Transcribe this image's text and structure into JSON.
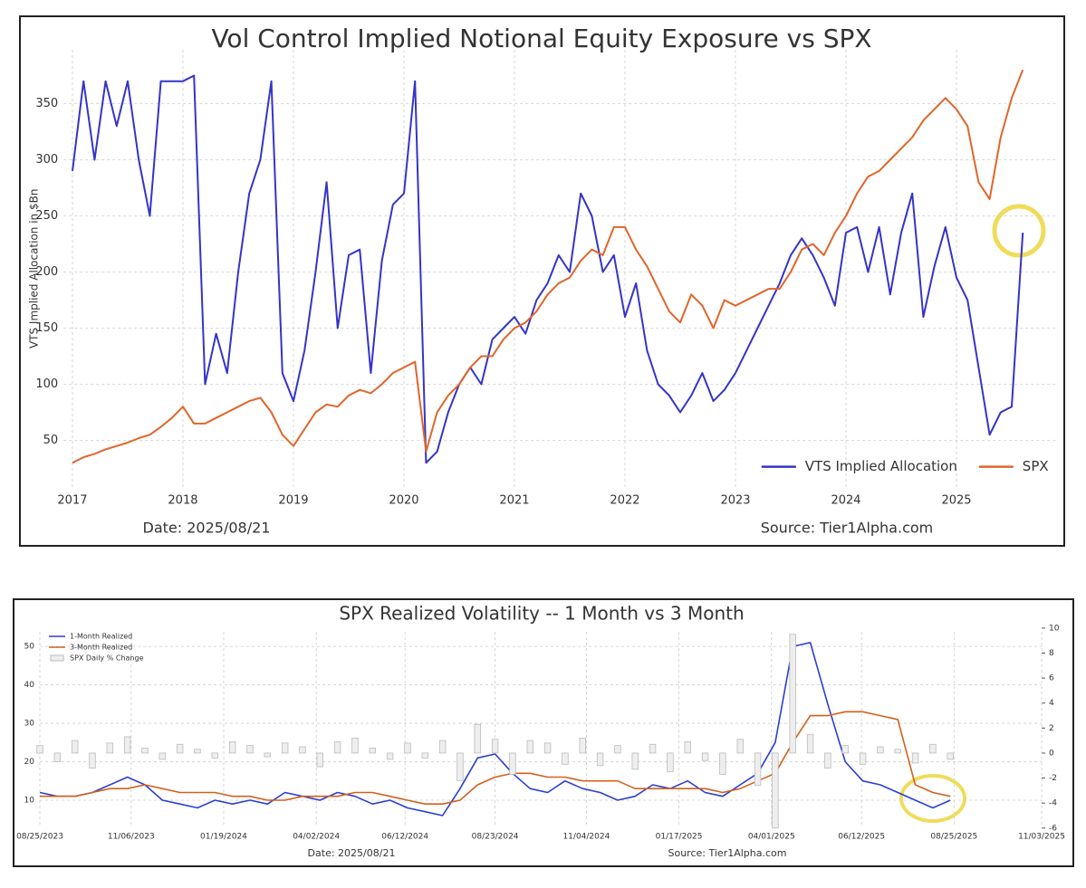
{
  "chart_data": [
    {
      "type": "line",
      "title": "Vol Control Implied Notional Equity Exposure vs SPX",
      "ylabel": "VTS Implied Allocation in $Bn",
      "annotations": [
        "Date: 2025/08/21",
        "Source: Tier1Alpha.com"
      ],
      "x": [
        2017.0,
        2017.1,
        2017.2,
        2017.3,
        2017.4,
        2017.5,
        2017.6,
        2017.7,
        2017.8,
        2017.9,
        2018.0,
        2018.1,
        2018.2,
        2018.3,
        2018.4,
        2018.5,
        2018.6,
        2018.7,
        2018.8,
        2018.9,
        2019.0,
        2019.1,
        2019.2,
        2019.3,
        2019.4,
        2019.5,
        2019.6,
        2019.7,
        2019.8,
        2019.9,
        2020.0,
        2020.1,
        2020.2,
        2020.3,
        2020.4,
        2020.5,
        2020.6,
        2020.7,
        2020.8,
        2020.9,
        2021.0,
        2021.1,
        2021.2,
        2021.3,
        2021.4,
        2021.5,
        2021.6,
        2021.7,
        2021.8,
        2021.9,
        2022.0,
        2022.1,
        2022.2,
        2022.3,
        2022.4,
        2022.5,
        2022.6,
        2022.7,
        2022.8,
        2022.9,
        2023.0,
        2023.1,
        2023.2,
        2023.3,
        2023.4,
        2023.5,
        2023.6,
        2023.7,
        2023.8,
        2023.9,
        2024.0,
        2024.1,
        2024.2,
        2024.3,
        2024.4,
        2024.5,
        2024.6,
        2024.7,
        2024.8,
        2024.9,
        2025.0,
        2025.1,
        2025.2,
        2025.3,
        2025.4,
        2025.5,
        2025.6
      ],
      "series": [
        {
          "name": "VTS Implied Allocation",
          "color": "#3434c8",
          "values": [
            290,
            370,
            300,
            370,
            330,
            370,
            300,
            250,
            370,
            370,
            370,
            375,
            100,
            145,
            110,
            200,
            270,
            300,
            370,
            110,
            85,
            130,
            200,
            280,
            150,
            215,
            220,
            110,
            210,
            260,
            270,
            370,
            30,
            40,
            75,
            100,
            115,
            100,
            140,
            150,
            160,
            145,
            175,
            190,
            215,
            200,
            270,
            250,
            200,
            215,
            160,
            190,
            130,
            100,
            90,
            75,
            90,
            110,
            85,
            95,
            110,
            130,
            150,
            170,
            190,
            215,
            230,
            215,
            195,
            170,
            235,
            240,
            200,
            240,
            180,
            235,
            270,
            160,
            205,
            240,
            195,
            175,
            115,
            55,
            75,
            80,
            235
          ]
        },
        {
          "name": "SPX",
          "color": "#e0652a",
          "values": [
            30,
            35,
            38,
            42,
            45,
            48,
            52,
            55,
            62,
            70,
            80,
            65,
            65,
            70,
            75,
            80,
            85,
            88,
            75,
            55,
            45,
            60,
            75,
            82,
            80,
            90,
            95,
            92,
            100,
            110,
            115,
            120,
            40,
            75,
            90,
            100,
            115,
            125,
            125,
            140,
            150,
            155,
            165,
            180,
            190,
            195,
            210,
            220,
            215,
            240,
            240,
            220,
            205,
            185,
            165,
            155,
            180,
            170,
            150,
            175,
            170,
            175,
            180,
            185,
            185,
            200,
            220,
            225,
            215,
            235,
            250,
            270,
            285,
            290,
            300,
            310,
            320,
            335,
            345,
            355,
            345,
            330,
            280,
            265,
            320,
            355,
            380
          ]
        }
      ],
      "xlim": [
        2016.92,
        2025.9
      ],
      "xticks": [
        2017,
        2018,
        2019,
        2020,
        2021,
        2022,
        2023,
        2024,
        2025
      ],
      "ylim": [
        8,
        398
      ],
      "yticks": [
        50,
        100,
        150,
        200,
        250,
        300,
        350
      ],
      "grid": true,
      "legend": "lower right"
    },
    {
      "type": "line",
      "title": "SPX Realized Volatility -- 1 Month vs 3 Month",
      "annotations": [
        "Date: 2025/08/21",
        "Source: Tier1Alpha.com"
      ],
      "x": [
        "2023-08-25",
        "2023-09-08",
        "2023-09-22",
        "2023-10-06",
        "2023-10-20",
        "2023-11-03",
        "2023-11-17",
        "2023-12-01",
        "2023-12-15",
        "2023-12-29",
        "2024-01-12",
        "2024-01-26",
        "2024-02-09",
        "2024-02-23",
        "2024-03-08",
        "2024-03-22",
        "2024-04-05",
        "2024-04-19",
        "2024-05-03",
        "2024-05-17",
        "2024-05-31",
        "2024-06-14",
        "2024-06-28",
        "2024-07-12",
        "2024-07-26",
        "2024-08-09",
        "2024-08-23",
        "2024-09-06",
        "2024-09-20",
        "2024-10-04",
        "2024-10-18",
        "2024-11-01",
        "2024-11-15",
        "2024-11-29",
        "2024-12-13",
        "2024-12-27",
        "2025-01-10",
        "2025-01-24",
        "2025-02-07",
        "2025-02-21",
        "2025-03-07",
        "2025-03-21",
        "2025-04-04",
        "2025-04-18",
        "2025-05-02",
        "2025-05-16",
        "2025-05-30",
        "2025-06-13",
        "2025-06-27",
        "2025-07-11",
        "2025-07-25",
        "2025-08-08",
        "2025-08-22"
      ],
      "series": [
        {
          "name": "1-Month Realized",
          "color": "#2b3fd0",
          "values": [
            12,
            11,
            11,
            12,
            14,
            16,
            14,
            10,
            9,
            8,
            10,
            9,
            10,
            9,
            12,
            11,
            10,
            12,
            11,
            9,
            10,
            8,
            7,
            6,
            13,
            21,
            22,
            17,
            13,
            12,
            15,
            13,
            12,
            10,
            11,
            14,
            13,
            15,
            12,
            11,
            14,
            17,
            25,
            50,
            51,
            35,
            20,
            15,
            14,
            12,
            10,
            8,
            10
          ]
        },
        {
          "name": "3-Month Realized",
          "color": "#d4601c",
          "values": [
            11,
            11,
            11,
            12,
            13,
            13,
            14,
            13,
            12,
            12,
            12,
            11,
            11,
            10,
            10,
            11,
            11,
            11,
            12,
            12,
            11,
            10,
            9,
            9,
            10,
            14,
            16,
            17,
            17,
            16,
            16,
            15,
            15,
            15,
            13,
            13,
            13,
            13,
            13,
            12,
            13,
            15,
            17,
            25,
            32,
            32,
            33,
            33,
            32,
            31,
            14,
            12,
            11
          ]
        },
        {
          "name": "SPX Daily % Change",
          "color": "#bbbbbb",
          "mark": "bar",
          "axis": "y2",
          "values": [
            0.6,
            -0.7,
            1.0,
            -1.2,
            0.8,
            1.3,
            0.4,
            -0.5,
            0.7,
            0.3,
            -0.4,
            0.9,
            0.6,
            -0.3,
            0.8,
            0.5,
            -1.1,
            0.9,
            1.2,
            0.4,
            -0.5,
            0.8,
            -0.4,
            1.0,
            -2.2,
            2.3,
            1.1,
            -1.7,
            1.0,
            0.8,
            -0.9,
            1.2,
            -1.0,
            0.6,
            -1.3,
            0.7,
            -1.5,
            0.9,
            -0.6,
            -1.7,
            1.1,
            -2.6,
            -6.0,
            9.5,
            1.5,
            -1.2,
            0.6,
            -0.9,
            0.5,
            0.3,
            -0.8,
            0.7,
            -0.5
          ]
        }
      ],
      "xlim": [
        "2023-08-25",
        "2025-11-03"
      ],
      "xticks": [
        {
          "value": "2023-08-25",
          "label": "08/25/2023"
        },
        {
          "value": "2023-11-06",
          "label": "11/06/2023"
        },
        {
          "value": "2024-01-19",
          "label": "01/19/2024"
        },
        {
          "value": "2024-04-02",
          "label": "04/02/2024"
        },
        {
          "value": "2024-06-12",
          "label": "06/12/2024"
        },
        {
          "value": "2024-08-23",
          "label": "08/23/2024"
        },
        {
          "value": "2024-11-04",
          "label": "11/04/2024"
        },
        {
          "value": "2025-01-17",
          "label": "01/17/2025"
        },
        {
          "value": "2025-04-01",
          "label": "04/01/2025"
        },
        {
          "value": "2025-06-12",
          "label": "06/12/2025"
        },
        {
          "value": "2025-08-25",
          "label": "08/25/2025"
        },
        {
          "value": "2025-11-03",
          "label": "11/03/2025"
        }
      ],
      "ylim": [
        3.4,
        53.8
      ],
      "yticks": [
        10,
        20,
        30,
        40,
        50
      ],
      "ytick_color": "#1a2a8a",
      "y2lim": [
        -5.8,
        9.7
      ],
      "y2ticks": [
        -6,
        -4,
        -2,
        0,
        2,
        4,
        6,
        8,
        10
      ],
      "y2tick_color": "#7a1fa0",
      "grid": true,
      "legend": "upper left"
    }
  ]
}
